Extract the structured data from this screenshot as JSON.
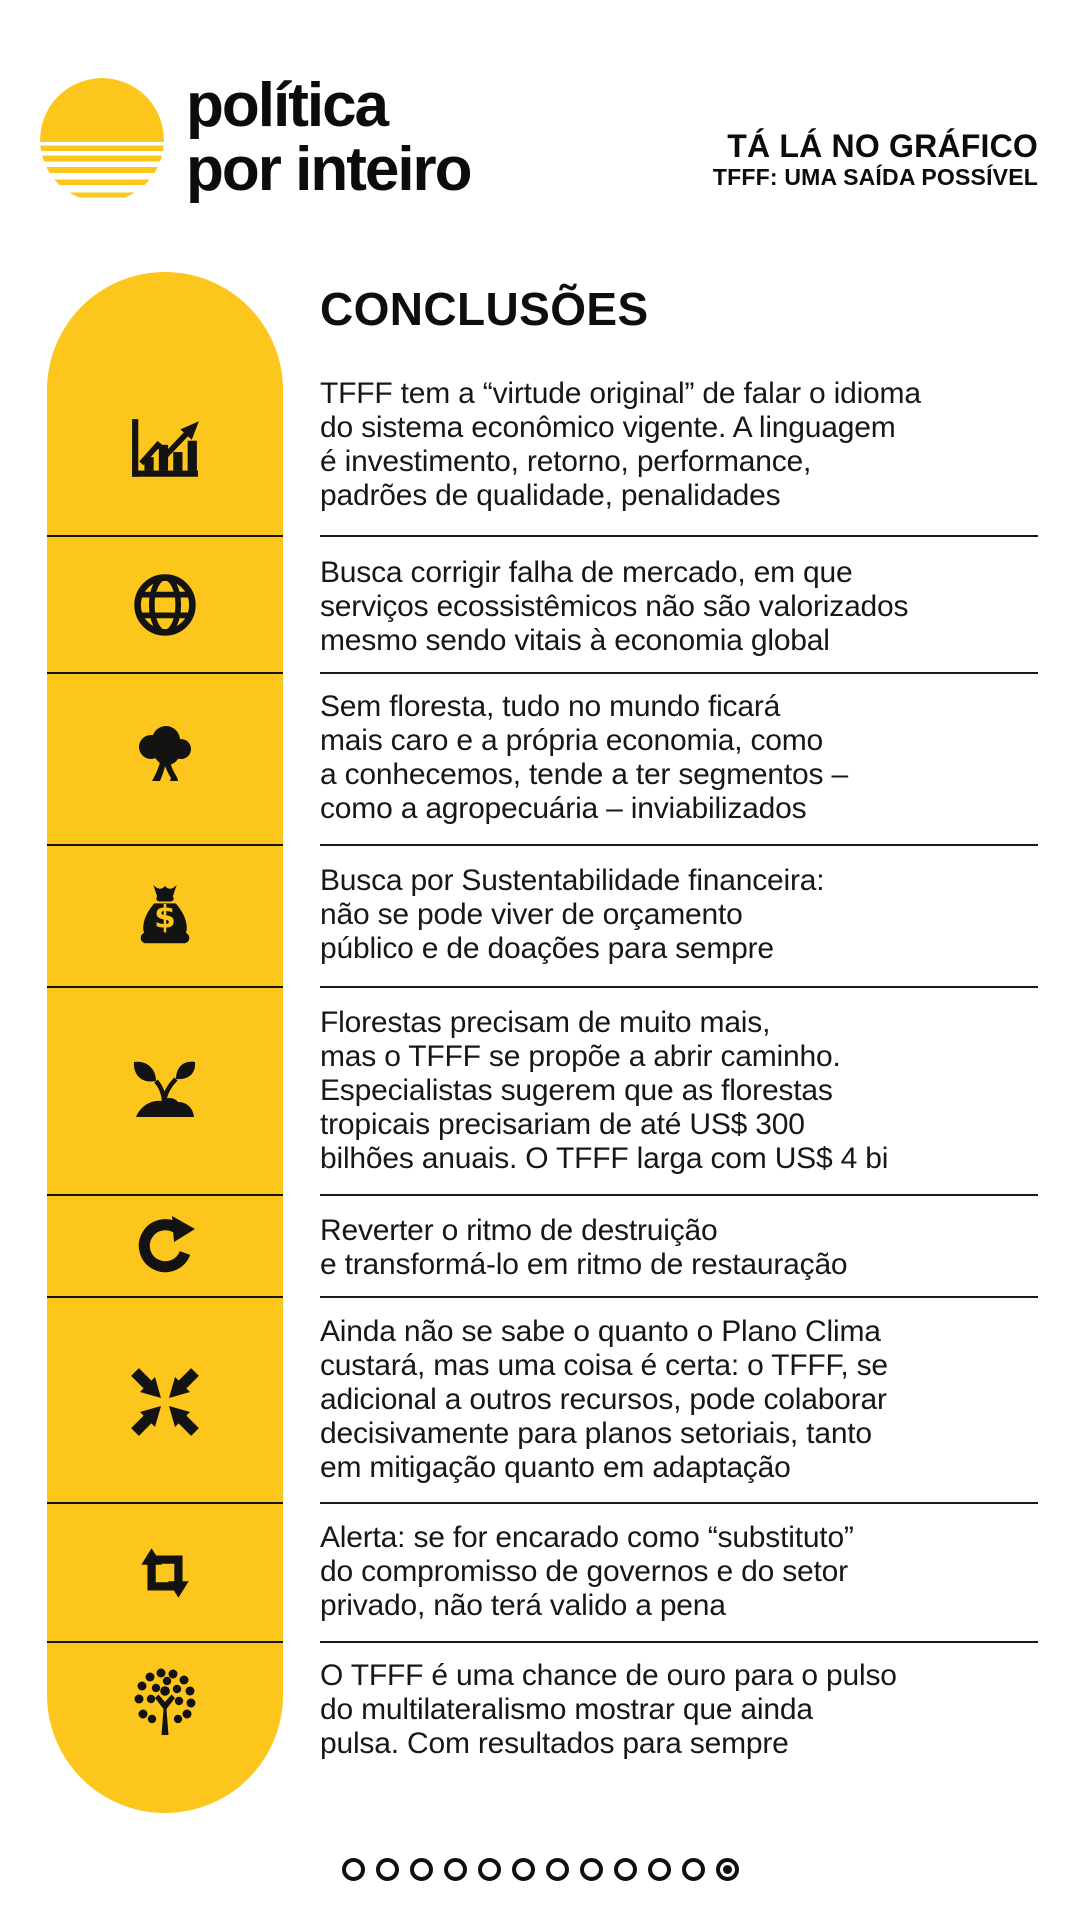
{
  "page": {
    "background_color": "#ffffff"
  },
  "brand": {
    "logo_icon": "sunset-stripes-icon",
    "wordmark_line1": "política",
    "wordmark_line2": "por inteiro",
    "yellow": "#FCC61D",
    "black": "#141414"
  },
  "header": {
    "kicker": "TÁ LÁ NO GRÁFICO",
    "subtitle": "TFFF: UMA SAÍDA POSSÍVEL"
  },
  "conclusions": {
    "title": "CONCLUSÕES",
    "items": [
      {
        "icon": "growth-chart-icon",
        "text": "TFFF tem a “virtude original” de falar o idioma\ndo sistema econômico vigente. A linguagem\né investimento, retorno, performance,\npadrões de qualidade, penalidades"
      },
      {
        "icon": "globe-icon",
        "text": "Busca corrigir falha de mercado, em que\nserviços ecossistêmicos não são valorizados\nmesmo sendo vitais à economia global"
      },
      {
        "icon": "tree-icon",
        "text": "Sem floresta, tudo no mundo ficará\nmais caro e a própria economia, como\na conhecemos, tende a ter segmentos –\ncomo a agropecuária – inviabilizados"
      },
      {
        "icon": "money-bag-icon",
        "text": "Busca por Sustentabilidade financeira:\nnão se pode viver de orçamento\npúblico e de doações para sempre"
      },
      {
        "icon": "sprout-icon",
        "text": "Florestas precisam de muito mais,\nmas o TFFF se propõe a abrir caminho.\nEspecialistas sugerem que as florestas\ntropicais precisariam de até US$ 300\nbilhões anuais. O TFFF larga com US$ 4 bi"
      },
      {
        "icon": "rotate-arrow-icon",
        "text": "Reverter o ritmo de destruição\ne transformá-lo em ritmo de restauração"
      },
      {
        "icon": "converge-arrows-icon",
        "text": "Ainda não se sabe o quanto o Plano Clima\ncustará, mas uma coisa é certa: o TFFF, se\nadicional a outros recursos, pode colaborar\ndecisivamente para planos setoriais, tanto\nem mitigação quanto em adaptação"
      },
      {
        "icon": "repeat-arrows-icon",
        "text": "Alerta: se for encarado como “substituto”\ndo compromisso de governos e do setor\nprivado, não terá valido a pena"
      },
      {
        "icon": "dotted-tree-icon",
        "text": "O TFFF é uma chance de ouro para o pulso\ndo multilateralismo mostrar que ainda\npulsa. Com resultados para sempre"
      }
    ]
  },
  "pagination": {
    "dots_total": 12,
    "active_dot": 12
  }
}
